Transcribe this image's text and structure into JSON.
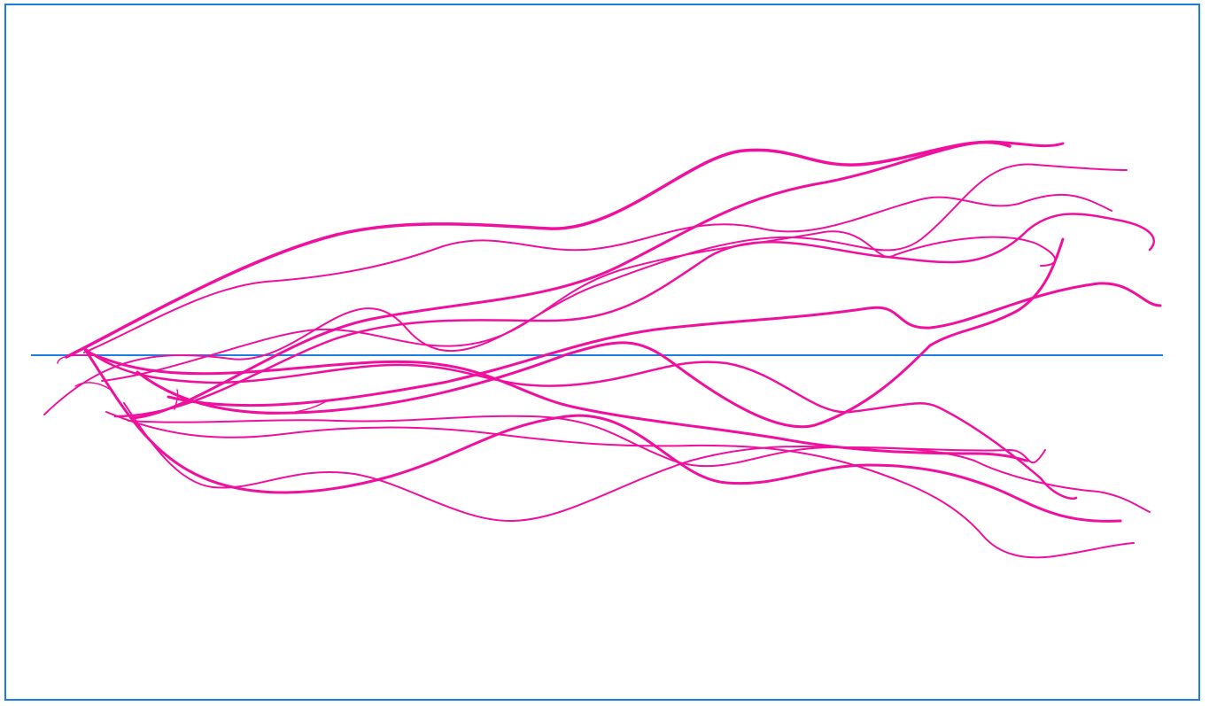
{
  "colors": {
    "frame": "#1a7fe0",
    "baseline": "#1a7fe0",
    "strokes": "#f0109e",
    "background": "#ffffff"
  }
}
